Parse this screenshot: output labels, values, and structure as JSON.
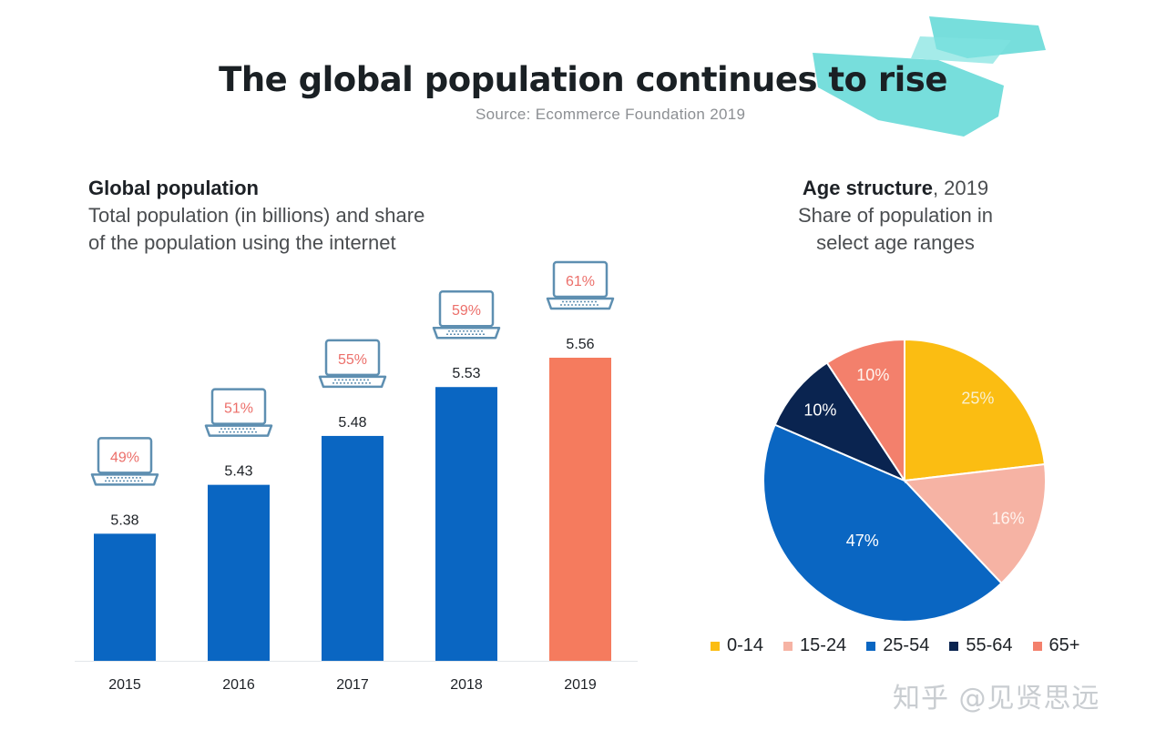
{
  "title": "The global population continues to rise",
  "source": "Source: Ecommerce Foundation 2019",
  "colors": {
    "bar_blue": "#0a66c2",
    "bar_highlight": "#f57b5e",
    "accent_brush": "#5fd8d6"
  },
  "chart_data": [
    {
      "type": "bar",
      "title": "Global population",
      "subtitle_lines": [
        "Total population (in billions) and share",
        "of the population using the internet"
      ],
      "categories": [
        "2015",
        "2016",
        "2017",
        "2018",
        "2019"
      ],
      "values": [
        5.38,
        5.43,
        5.48,
        5.53,
        5.56
      ],
      "value_labels": [
        "5.38",
        "5.43",
        "5.48",
        "5.53",
        "5.56"
      ],
      "internet_share_labels": [
        "49%",
        "51%",
        "55%",
        "59%",
        "61%"
      ],
      "highlight_index": 4,
      "xlabel": "",
      "ylabel": "",
      "ylim": [
        5.25,
        5.6
      ]
    },
    {
      "type": "pie",
      "title": "Age structure",
      "title_year": ", 2019",
      "subtitle_lines": [
        "Share of population in",
        "select age ranges"
      ],
      "slices": [
        {
          "name": "0-14",
          "value": 25,
          "label": "25%",
          "color": "#fbbd12"
        },
        {
          "name": "15-24",
          "value": 16,
          "label": "16%",
          "color": "#f6b3a4"
        },
        {
          "name": "25-54",
          "value": 47,
          "label": "47%",
          "color": "#0a66c2"
        },
        {
          "name": "55-64",
          "value": 10,
          "label": "10%",
          "color": "#0a2450"
        },
        {
          "name": "65+",
          "value": 10,
          "label": "10%",
          "color": "#f3806c"
        }
      ],
      "legend": [
        "0-14",
        "15-24",
        "25-54",
        "55-64",
        "65+"
      ],
      "legend_position": "bottom"
    }
  ],
  "watermark": "知乎 @见贤思远"
}
